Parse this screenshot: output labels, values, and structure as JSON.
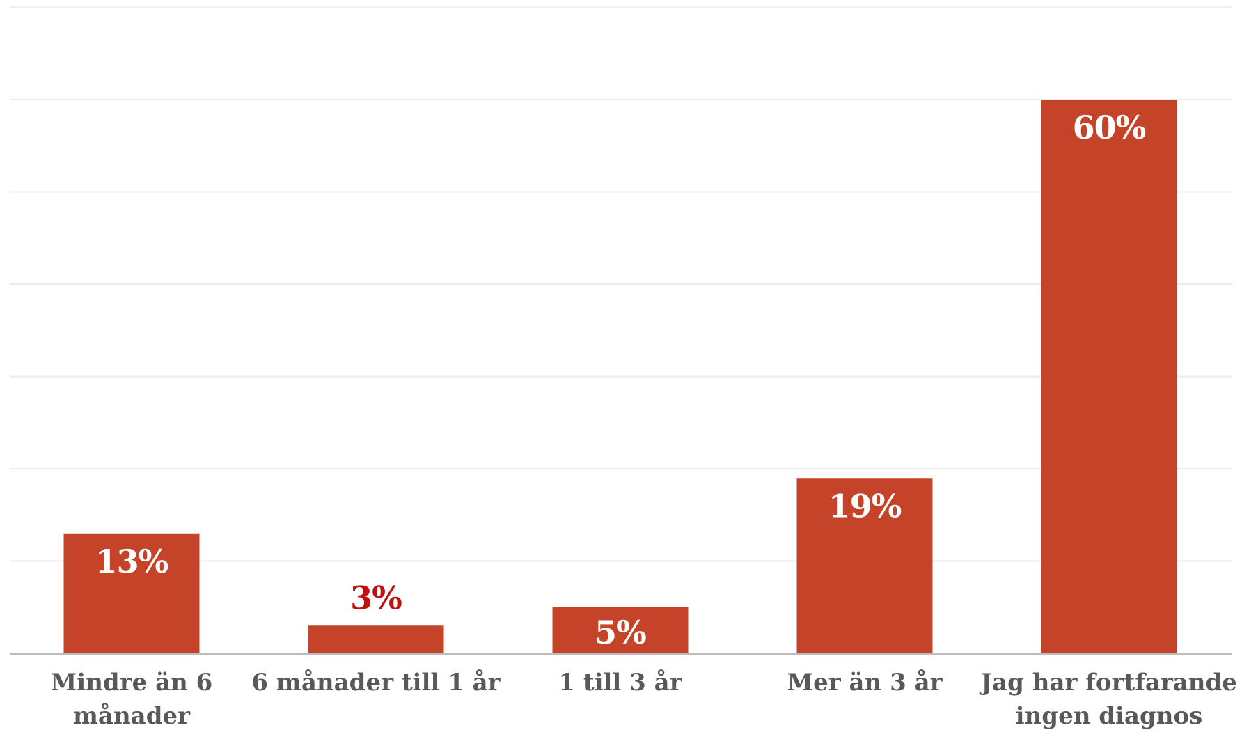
{
  "chart_data": {
    "type": "bar",
    "categories": [
      "Mindre än 6 månader",
      "6 månader till 1 år",
      "1 till 3 år",
      "Mer än 3 år",
      "Jag har fortfarande ingen diagnos"
    ],
    "category_lines": [
      [
        "Mindre än 6",
        "månader"
      ],
      [
        "6 månader till 1 år"
      ],
      [
        "1 till 3 år"
      ],
      [
        "Mer än 3 år"
      ],
      [
        "Jag har fortfarande",
        "ingen diagnos"
      ]
    ],
    "values": [
      13,
      3,
      5,
      19,
      60
    ],
    "data_labels": [
      "13%",
      "3%",
      "5%",
      "19%",
      "60%"
    ],
    "ylim": [
      0,
      70
    ],
    "grid": true,
    "legend": "none",
    "bar_color": "#c54328",
    "label_color_inside": "#ffffff",
    "label_color_outside": "#c0100f"
  }
}
